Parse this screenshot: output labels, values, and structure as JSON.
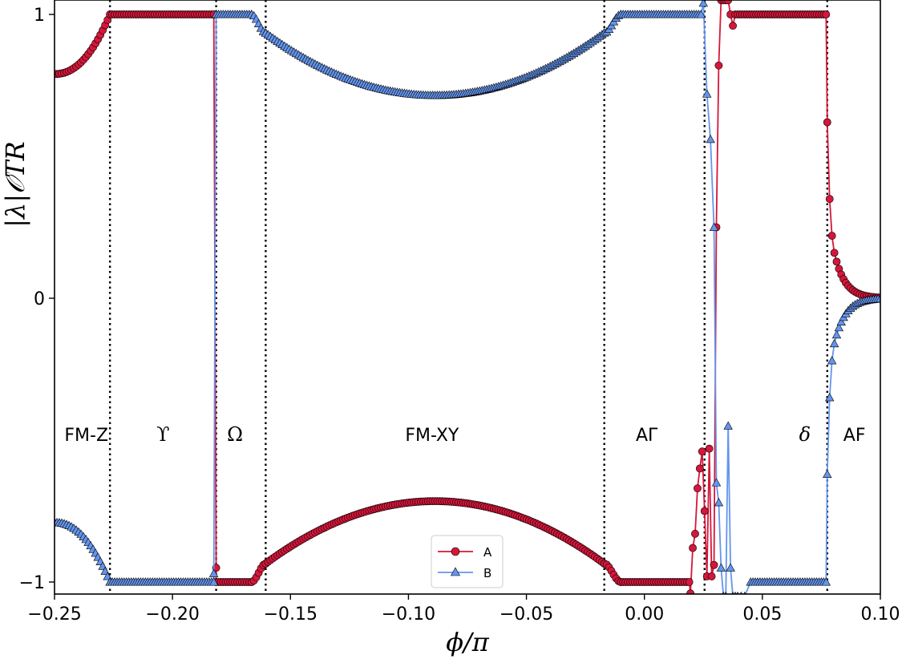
{
  "chart_data": {
    "type": "line",
    "xlabel": "ϕ/π",
    "ylabel": "|λ|𝒪TR",
    "xlim": [
      -0.25,
      0.1
    ],
    "ylim": [
      -1.04,
      1.01
    ],
    "xticks": [
      {
        "value": -0.25,
        "label": "−0.25"
      },
      {
        "value": -0.2,
        "label": "−0.20"
      },
      {
        "value": -0.15,
        "label": "−0.15"
      },
      {
        "value": -0.1,
        "label": "−0.10"
      },
      {
        "value": -0.05,
        "label": "−0.05"
      },
      {
        "value": 0.0,
        "label": "0.00"
      },
      {
        "value": 0.05,
        "label": "0.05"
      },
      {
        "value": 0.1,
        "label": "0.10"
      }
    ],
    "yticks": [
      {
        "value": -1,
        "label": "−1"
      },
      {
        "value": 0,
        "label": "0"
      },
      {
        "value": 1,
        "label": "1"
      }
    ],
    "grid": false,
    "legend_position": "bottom-center",
    "phase_boundaries": [
      -0.2265,
      -0.1815,
      -0.1605,
      -0.017,
      0.0255,
      0.0775
    ],
    "phase_labels": [
      {
        "x": -0.2365,
        "y": -0.48,
        "text": "FM-Z"
      },
      {
        "x": -0.204,
        "y": -0.48,
        "text": "ϒ"
      },
      {
        "x": -0.1735,
        "y": -0.48,
        "text": "Ω"
      },
      {
        "x": -0.09,
        "y": -0.48,
        "text": "FM-XY"
      },
      {
        "x": 0.001,
        "y": -0.48,
        "text": "AΓ"
      },
      {
        "x": 0.068,
        "y": -0.48,
        "text": "δ"
      },
      {
        "x": 0.089,
        "y": -0.48,
        "text": "AF"
      }
    ],
    "series": [
      {
        "name": "A",
        "color": "#d6163a",
        "marker": "circle",
        "segments": [
          {
            "kind": "curve",
            "x0": -0.25,
            "x1": -0.2265,
            "f": "pow",
            "y0": 0.79,
            "y1": 1.0,
            "p": 2.2
          },
          {
            "kind": "const",
            "x0": -0.2265,
            "x1": -0.1825,
            "y": 1.0
          },
          {
            "kind": "points",
            "x": [
              -0.1825,
              -0.1815
            ],
            "y": [
              1.0,
              -0.95
            ]
          },
          {
            "kind": "const",
            "x0": -0.1815,
            "x1": -0.1665,
            "y": -1.0
          },
          {
            "kind": "curve",
            "x0": -0.1665,
            "x1": -0.1605,
            "f": "ease",
            "y0": -1.0,
            "y1": -0.935
          },
          {
            "kind": "arc",
            "x0": -0.1605,
            "x1": -0.017,
            "xc": -0.0888,
            "yc": -0.715,
            "ye": -0.935,
            "sign": 1
          },
          {
            "kind": "curve",
            "x0": -0.017,
            "x1": -0.01,
            "f": "ease",
            "y0": -0.935,
            "y1": -1.0
          },
          {
            "kind": "const",
            "x0": -0.01,
            "x1": 0.019,
            "y": -1.0
          },
          {
            "kind": "points",
            "x": [
              0.0195,
              0.0205,
              0.0215,
              0.0225,
              0.0235,
              0.0245,
              0.0255,
              0.0265,
              0.0275,
              0.0285,
              0.0295,
              0.0305,
              0.0315,
              0.0325,
              0.0335,
              0.0345,
              0.0355,
              0.0365,
              0.0375,
              0.0385
            ],
            "y": [
              -1.04,
              -0.88,
              -0.83,
              -0.67,
              -0.6,
              -0.54,
              -0.75,
              -0.98,
              -0.53,
              -0.98,
              -0.94,
              0.25,
              0.82,
              1.05,
              1.05,
              1.05,
              1.05,
              1.0,
              0.96,
              1.0
            ]
          },
          {
            "kind": "const",
            "x0": 0.0395,
            "x1": 0.077,
            "y": 1.0
          },
          {
            "kind": "points",
            "x": [
              0.0775,
              0.0785,
              0.0795
            ],
            "y": [
              0.62,
              0.35,
              0.22
            ]
          },
          {
            "kind": "curve",
            "x0": 0.0805,
            "x1": 0.1,
            "f": "decay",
            "y0": 0.16,
            "y1": 0.0,
            "p": 0.0045
          }
        ]
      },
      {
        "name": "B",
        "color": "#6495ed",
        "marker": "triangle",
        "segments": [
          {
            "kind": "curve",
            "x0": -0.25,
            "x1": -0.2265,
            "f": "pow",
            "y0": -0.79,
            "y1": -1.0,
            "p": 2.2
          },
          {
            "kind": "const",
            "x0": -0.2265,
            "x1": -0.1825,
            "y": -1.0
          },
          {
            "kind": "points",
            "x": [
              -0.1825,
              -0.1815
            ],
            "y": [
              -0.97,
              1.0
            ]
          },
          {
            "kind": "const",
            "x0": -0.1815,
            "x1": -0.1665,
            "y": 1.0
          },
          {
            "kind": "curve",
            "x0": -0.1665,
            "x1": -0.1605,
            "f": "ease",
            "y0": 1.0,
            "y1": 0.935
          },
          {
            "kind": "arc",
            "x0": -0.1605,
            "x1": -0.017,
            "xc": -0.0888,
            "yc": 0.715,
            "ye": 0.935,
            "sign": -1
          },
          {
            "kind": "curve",
            "x0": -0.017,
            "x1": -0.01,
            "f": "ease",
            "y0": 0.935,
            "y1": 1.0
          },
          {
            "kind": "const",
            "x0": -0.01,
            "x1": 0.024,
            "y": 1.0
          },
          {
            "kind": "points",
            "x": [
              0.025,
              0.0265,
              0.028,
              0.0295,
              0.0305,
              0.0315,
              0.0325,
              0.0335,
              0.0345,
              0.0355,
              0.0365,
              0.0375,
              0.0385,
              0.0395,
              0.041,
              0.0425
            ],
            "y": [
              1.04,
              0.72,
              0.56,
              0.25,
              -0.65,
              -0.72,
              -0.95,
              -1.05,
              -1.05,
              -0.45,
              -0.95,
              -1.05,
              -1.05,
              -1.05,
              -1.05,
              -1.05
            ]
          },
          {
            "kind": "const",
            "x0": 0.045,
            "x1": 0.077,
            "y": -1.0
          },
          {
            "kind": "points",
            "x": [
              0.0775,
              0.0785,
              0.0795
            ],
            "y": [
              -0.62,
              -0.35,
              -0.22
            ]
          },
          {
            "kind": "curve",
            "x0": 0.0805,
            "x1": 0.1,
            "f": "decay",
            "y0": -0.16,
            "y1": 0.0,
            "p": 0.0045
          }
        ]
      }
    ]
  }
}
